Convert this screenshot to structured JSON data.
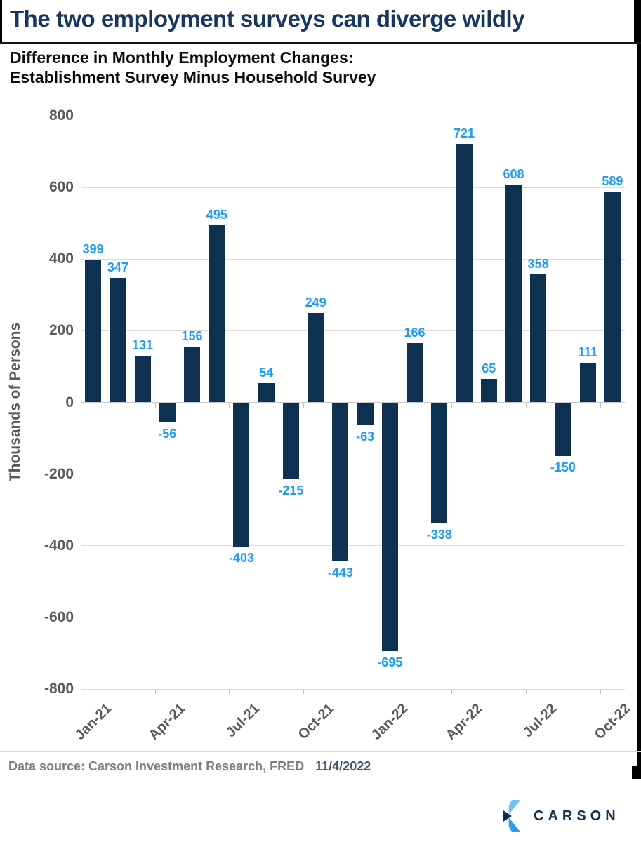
{
  "header": {
    "title": "The two employment surveys can diverge wildly",
    "subtitle_line1": "Difference in Monthly Employment Changes:",
    "subtitle_line2": "Establishment Survey Minus Household Survey"
  },
  "chart_data": {
    "type": "bar",
    "title": "Difference in Monthly Employment Changes: Establishment Survey Minus Household Survey",
    "xlabel": "",
    "ylabel": "Thousands of Persons",
    "ylim": [
      -800,
      800
    ],
    "ytick_interval": 200,
    "grid": true,
    "legend": "none",
    "x_label_every": 3,
    "categories": [
      "Jan-21",
      "Feb-21",
      "Mar-21",
      "Apr-21",
      "May-21",
      "Jun-21",
      "Jul-21",
      "Aug-21",
      "Sep-21",
      "Oct-21",
      "Nov-21",
      "Dec-21",
      "Jan-22",
      "Feb-22",
      "Mar-22",
      "Apr-22",
      "May-22",
      "Jun-22",
      "Jul-22",
      "Aug-22",
      "Sep-22",
      "Oct-22"
    ],
    "values": [
      399,
      347,
      131,
      -56,
      156,
      495,
      -403,
      54,
      -215,
      249,
      -443,
      -63,
      -695,
      166,
      -338,
      721,
      65,
      608,
      358,
      -150,
      111,
      589
    ],
    "bar_color": "#0E3051",
    "data_label_color": "#1E9BF0",
    "axis_text_color": "#595959"
  },
  "footer": {
    "source_text": "Data source: Carson Investment Research, FRED",
    "date": "11/4/2022"
  },
  "logo": {
    "text": "CARSON",
    "icon": "carson-chevron-mark",
    "icon_colors": {
      "light_blue": "#74C2EF",
      "mid_blue": "#2D9CEA",
      "navy": "#0F2D4E",
      "wordmark": "#14304E"
    }
  }
}
